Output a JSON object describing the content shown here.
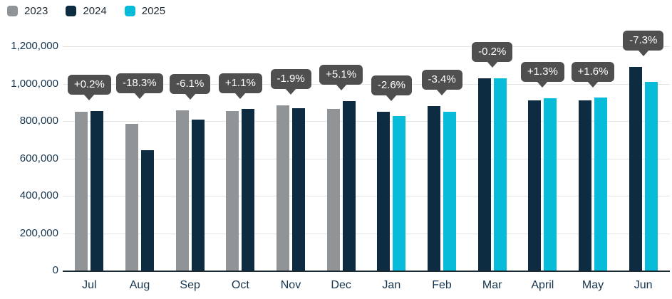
{
  "chart_data": {
    "type": "bar",
    "title": "",
    "categories": [
      "Jul",
      "Aug",
      "Sep",
      "Oct",
      "Nov",
      "Dec",
      "Jan",
      "Feb",
      "Mar",
      "April",
      "May",
      "Jun"
    ],
    "series": [
      {
        "name": "2023",
        "color": "#919496",
        "values": [
          850000,
          786000,
          859000,
          854000,
          885000,
          864000,
          null,
          null,
          null,
          null,
          null,
          null
        ]
      },
      {
        "name": "2024",
        "color": "#0d2c42",
        "values": [
          852000,
          642000,
          807000,
          863000,
          868000,
          908000,
          849000,
          881000,
          1030000,
          910000,
          909000,
          1088000
        ]
      },
      {
        "name": "2025",
        "color": "#06bcd9",
        "values": [
          null,
          null,
          null,
          null,
          null,
          null,
          827000,
          851000,
          1028000,
          922000,
          924000,
          1009000
        ]
      }
    ],
    "change_labels": [
      "+0.2%",
      "-18.3%",
      "-6.1%",
      "+1.1%",
      "-1.9%",
      "+5.1%",
      "-2.6%",
      "-3.4%",
      "-0.2%",
      "+1.3%",
      "+1.6%",
      "-7.3%"
    ],
    "label_anchor_values": [
      905000,
      913000,
      912000,
      916000,
      938000,
      961000,
      902000,
      934000,
      1083000,
      975000,
      977000,
      1141000
    ],
    "y_ticks": [
      {
        "label": "1,200,000",
        "value": 1200000
      },
      {
        "label": "1,000,000",
        "value": 1000000
      },
      {
        "label": "800,000",
        "value": 800000
      },
      {
        "label": "600,000",
        "value": 600000
      },
      {
        "label": "400,000",
        "value": 400000
      },
      {
        "label": "200,000",
        "value": 200000
      },
      {
        "label": "0",
        "value": 0
      }
    ],
    "ylim": [
      0,
      1200000
    ],
    "grid": true,
    "legend_position": "top-left",
    "colors": {
      "tooltip_bg": "#4f4f4f",
      "tooltip_text": "#ffffff",
      "axis_text": "#16344d",
      "gridline": "#e4e4e4",
      "axis_line": "#1b2a33"
    }
  }
}
